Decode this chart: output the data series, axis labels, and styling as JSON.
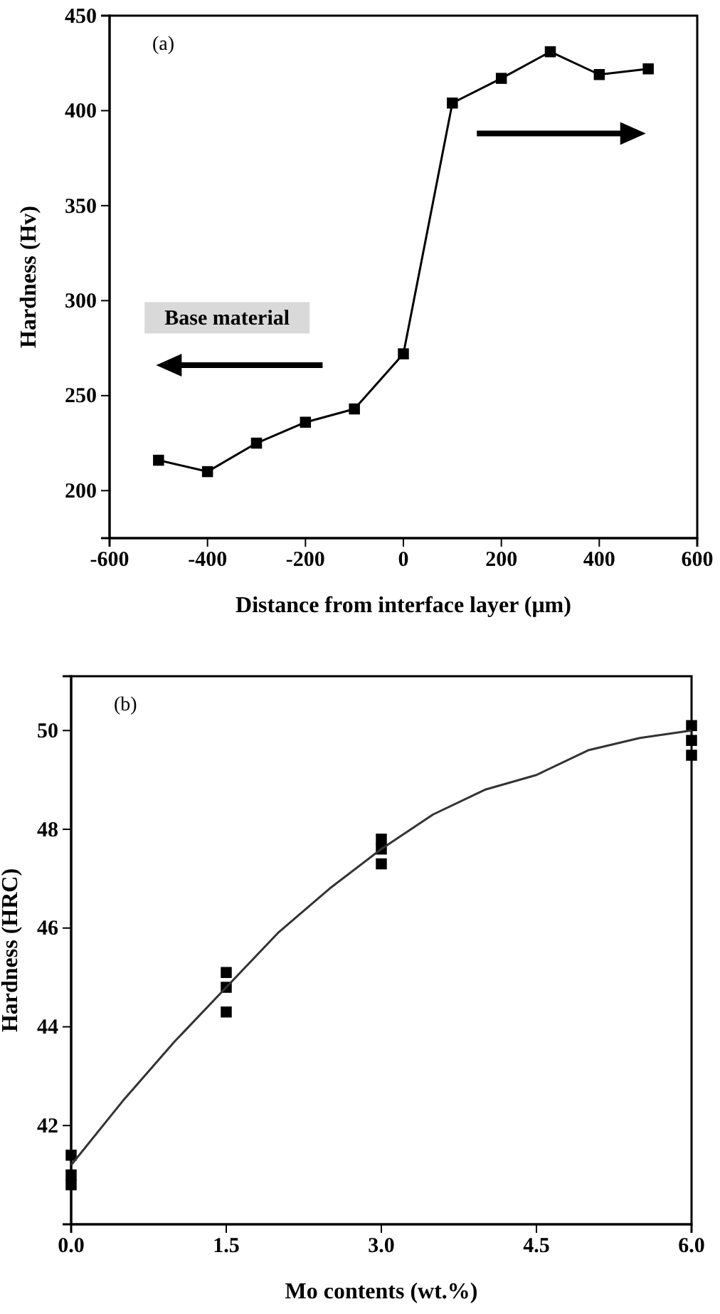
{
  "chart_data": [
    {
      "type": "line",
      "xlabel": "Distance from interface layer (μm)",
      "ylabel": "Hardness (Hv)",
      "x": [
        -500,
        -400,
        -300,
        -200,
        -100,
        0,
        100,
        200,
        300,
        400,
        500
      ],
      "series": [
        {
          "color": "#000000",
          "values": [
            216,
            210,
            225,
            236,
            243,
            272,
            404,
            417,
            431,
            419,
            422
          ]
        }
      ],
      "xlim": [
        -600,
        600
      ],
      "xticks": [
        -600,
        -400,
        -200,
        0,
        200,
        400,
        600
      ],
      "ylim": [
        175,
        450
      ],
      "yticks": [
        200,
        250,
        300,
        350,
        400,
        450
      ],
      "marker": "square",
      "line_style": "solid",
      "annotations": [
        "(a)",
        "Base material"
      ]
    },
    {
      "type": "scatter",
      "xlabel": "Mo contents (wt.%)",
      "ylabel": "Hardness (HRC)",
      "series": [
        {
          "type": "scatter",
          "color": "#000000",
          "x": [
            0,
            0,
            0,
            1.5,
            1.5,
            1.5,
            3,
            3,
            3,
            6,
            6,
            6
          ],
          "values": [
            41.4,
            41.0,
            40.8,
            45.1,
            44.8,
            44.3,
            47.8,
            47.6,
            47.3,
            50.1,
            49.8,
            49.5
          ]
        },
        {
          "type": "line",
          "marker": "none",
          "color": "#333333",
          "x": [
            0,
            0.5,
            1,
            1.5,
            2,
            2.5,
            3,
            3.5,
            4,
            4.5,
            5,
            5.5,
            6
          ],
          "values": [
            41.2,
            42.5,
            43.7,
            44.8,
            45.9,
            46.8,
            47.6,
            48.3,
            48.8,
            49.1,
            49.6,
            49.85,
            50.0
          ]
        }
      ],
      "xlim": [
        0,
        6
      ],
      "xticks": [
        {
          "value": 0,
          "label": "0.0"
        },
        1.5,
        {
          "value": 3,
          "label": "3.0"
        },
        4.5,
        {
          "value": 6,
          "label": "6.0"
        }
      ],
      "ylim": [
        40,
        51.1
      ],
      "yticks": [
        42,
        44,
        46,
        48,
        50
      ],
      "marker": "square",
      "annotations": [
        "(b)"
      ]
    }
  ]
}
